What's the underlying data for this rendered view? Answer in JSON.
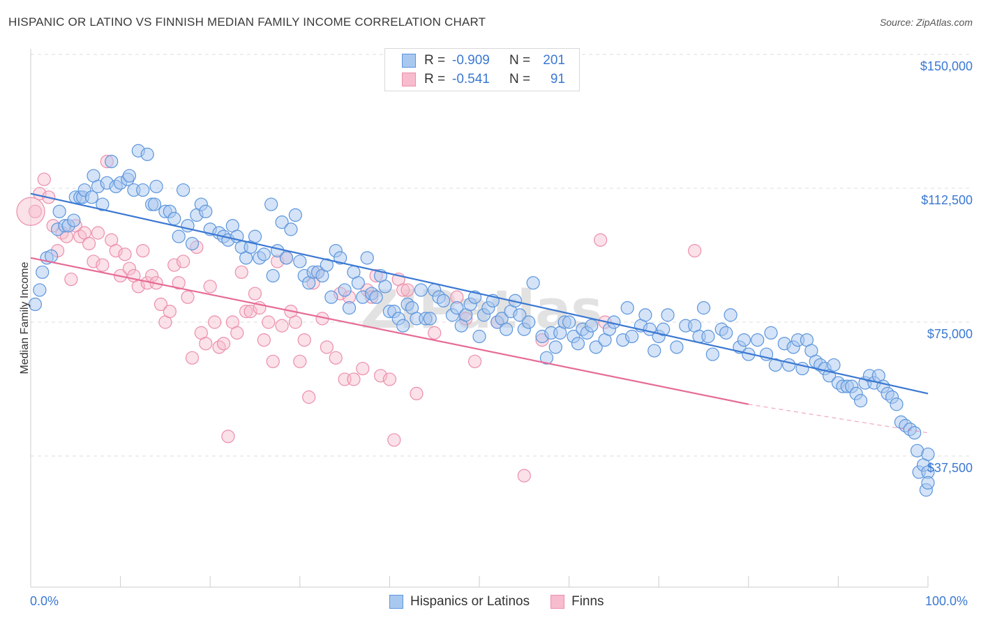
{
  "title": "HISPANIC OR LATINO VS FINNISH MEDIAN FAMILY INCOME CORRELATION CHART",
  "source": "Source: ZipAtlas.com",
  "watermark": "ZIPatlas",
  "colors": {
    "blue_fill": "#a9c8f0",
    "blue_stroke": "#5b95dc",
    "blue_line": "#3a78d2",
    "pink_fill": "#f7bccd",
    "pink_stroke": "#ec8eab",
    "pink_line": "#e66b95",
    "grid": "#dddddd",
    "axis_text": "#3a78d2"
  },
  "legend_stats": [
    {
      "series": "Hispanics or Latinos",
      "r_label": "R =",
      "r_value": "-0.909",
      "n_label": "N =",
      "n_value": "201"
    },
    {
      "series": "Finns",
      "r_label": "R =",
      "r_value": "-0.541",
      "n_label": "N =",
      "n_value": "91"
    }
  ],
  "chart_data": {
    "type": "scatter",
    "title": "HISPANIC OR LATINO VS FINNISH MEDIAN FAMILY INCOME CORRELATION CHART",
    "xlabel": "",
    "ylabel": "Median Family Income",
    "xlim": [
      0,
      100
    ],
    "ylim": [
      0,
      157000
    ],
    "x_tick_labels": [
      "0.0%",
      "100.0%"
    ],
    "y_ticks": [
      37500,
      75000,
      112500,
      150000
    ],
    "y_tick_labels": [
      "$37,500",
      "$75,000",
      "$112,500",
      "$150,000"
    ],
    "legend": [
      "Hispanics or Latinos",
      "Finns"
    ],
    "series": [
      {
        "name": "Hispanics or Latinos",
        "trend": {
          "x": [
            0,
            100
          ],
          "y": [
            111000,
            55000
          ]
        },
        "points": [
          [
            0.5,
            80000
          ],
          [
            1.0,
            84000
          ],
          [
            1.3,
            89000
          ],
          [
            1.8,
            93000
          ],
          [
            2.3,
            93500
          ],
          [
            3.0,
            101000
          ],
          [
            3.2,
            106000
          ],
          [
            3.8,
            102000
          ],
          [
            4.2,
            102000
          ],
          [
            4.8,
            103500
          ],
          [
            5.0,
            110000
          ],
          [
            5.5,
            110000
          ],
          [
            5.8,
            110000
          ],
          [
            6.0,
            112000
          ],
          [
            6.8,
            110000
          ],
          [
            7.0,
            116000
          ],
          [
            7.5,
            113000
          ],
          [
            8.0,
            108000
          ],
          [
            8.5,
            114000
          ],
          [
            9.0,
            120000
          ],
          [
            9.5,
            113000
          ],
          [
            10.0,
            114000
          ],
          [
            10.8,
            115000
          ],
          [
            11.0,
            116000
          ],
          [
            11.5,
            112000
          ],
          [
            12.0,
            123000
          ],
          [
            12.5,
            112000
          ],
          [
            13.0,
            122000
          ],
          [
            13.5,
            108000
          ],
          [
            13.8,
            108000
          ],
          [
            14.0,
            113000
          ],
          [
            15.0,
            106000
          ],
          [
            15.5,
            106000
          ],
          [
            16.0,
            104000
          ],
          [
            16.5,
            99000
          ],
          [
            17.0,
            112000
          ],
          [
            17.5,
            102000
          ],
          [
            18.0,
            97000
          ],
          [
            18.5,
            105000
          ],
          [
            19.0,
            108000
          ],
          [
            19.5,
            106000
          ],
          [
            20.0,
            101000
          ],
          [
            21.0,
            100000
          ],
          [
            21.5,
            99000
          ],
          [
            22.0,
            98000
          ],
          [
            22.5,
            102000
          ],
          [
            23.0,
            99000
          ],
          [
            23.5,
            96000
          ],
          [
            24.0,
            93000
          ],
          [
            24.5,
            96000
          ],
          [
            25.0,
            99000
          ],
          [
            25.5,
            93000
          ],
          [
            26.0,
            94000
          ],
          [
            26.8,
            108000
          ],
          [
            27.0,
            88000
          ],
          [
            27.5,
            95000
          ],
          [
            28.0,
            103000
          ],
          [
            28.5,
            93000
          ],
          [
            29.0,
            101000
          ],
          [
            29.5,
            105000
          ],
          [
            30.0,
            92000
          ],
          [
            30.5,
            88000
          ],
          [
            31.0,
            86000
          ],
          [
            31.5,
            89000
          ],
          [
            32.0,
            89000
          ],
          [
            32.5,
            88000
          ],
          [
            33.0,
            91000
          ],
          [
            33.5,
            82000
          ],
          [
            34.0,
            95000
          ],
          [
            34.5,
            93000
          ],
          [
            35.0,
            84000
          ],
          [
            35.5,
            79000
          ],
          [
            36.0,
            89000
          ],
          [
            36.5,
            86000
          ],
          [
            37.0,
            82000
          ],
          [
            37.5,
            93000
          ],
          [
            38.0,
            83000
          ],
          [
            38.5,
            82000
          ],
          [
            39.0,
            88000
          ],
          [
            39.5,
            85000
          ],
          [
            40.0,
            78000
          ],
          [
            40.5,
            78000
          ],
          [
            41.0,
            76000
          ],
          [
            41.5,
            74000
          ],
          [
            42.0,
            80000
          ],
          [
            42.5,
            79000
          ],
          [
            43.0,
            76000
          ],
          [
            43.5,
            84000
          ],
          [
            44.0,
            76000
          ],
          [
            44.5,
            76000
          ],
          [
            45.0,
            84000
          ],
          [
            45.5,
            82000
          ],
          [
            46.0,
            81000
          ],
          [
            47.0,
            77000
          ],
          [
            47.5,
            79000
          ],
          [
            48.0,
            74000
          ],
          [
            48.5,
            77000
          ],
          [
            49.0,
            80000
          ],
          [
            49.5,
            82000
          ],
          [
            50.0,
            71000
          ],
          [
            50.5,
            77000
          ],
          [
            51.0,
            79000
          ],
          [
            51.5,
            81000
          ],
          [
            52.0,
            75000
          ],
          [
            52.5,
            76000
          ],
          [
            53.0,
            73000
          ],
          [
            53.5,
            78000
          ],
          [
            54.0,
            81000
          ],
          [
            54.5,
            77000
          ],
          [
            55.0,
            73000
          ],
          [
            55.5,
            75000
          ],
          [
            56.0,
            86000
          ],
          [
            57.0,
            71000
          ],
          [
            57.5,
            65000
          ],
          [
            58.0,
            72000
          ],
          [
            58.5,
            68000
          ],
          [
            59.0,
            72000
          ],
          [
            59.5,
            75000
          ],
          [
            60.0,
            75000
          ],
          [
            60.5,
            71000
          ],
          [
            61.0,
            69000
          ],
          [
            61.5,
            73000
          ],
          [
            62.0,
            72000
          ],
          [
            62.5,
            74000
          ],
          [
            63.0,
            68000
          ],
          [
            64.0,
            70000
          ],
          [
            64.5,
            73000
          ],
          [
            65.0,
            75000
          ],
          [
            66.0,
            70000
          ],
          [
            66.5,
            79000
          ],
          [
            67.0,
            71000
          ],
          [
            68.0,
            74000
          ],
          [
            68.5,
            77000
          ],
          [
            69.0,
            73000
          ],
          [
            69.5,
            67000
          ],
          [
            70.0,
            71000
          ],
          [
            70.5,
            73000
          ],
          [
            71.0,
            77000
          ],
          [
            72.0,
            68000
          ],
          [
            73.0,
            74000
          ],
          [
            74.0,
            74000
          ],
          [
            74.5,
            71000
          ],
          [
            75.0,
            79000
          ],
          [
            75.5,
            71000
          ],
          [
            76.0,
            66000
          ],
          [
            77.0,
            73000
          ],
          [
            77.5,
            72000
          ],
          [
            78.0,
            77000
          ],
          [
            79.0,
            68000
          ],
          [
            79.5,
            70000
          ],
          [
            80.0,
            66000
          ],
          [
            81.0,
            70000
          ],
          [
            82.0,
            66000
          ],
          [
            82.5,
            72000
          ],
          [
            83.0,
            63000
          ],
          [
            84.0,
            69000
          ],
          [
            84.5,
            63000
          ],
          [
            85.0,
            68000
          ],
          [
            85.5,
            70000
          ],
          [
            86.0,
            62000
          ],
          [
            86.5,
            70000
          ],
          [
            87.0,
            67000
          ],
          [
            87.5,
            64000
          ],
          [
            88.0,
            63000
          ],
          [
            88.5,
            62000
          ],
          [
            89.0,
            60000
          ],
          [
            89.5,
            63000
          ],
          [
            90.0,
            58000
          ],
          [
            90.5,
            57000
          ],
          [
            91.0,
            57000
          ],
          [
            91.5,
            57000
          ],
          [
            92.0,
            55000
          ],
          [
            92.5,
            53000
          ],
          [
            93.0,
            58000
          ],
          [
            93.5,
            60000
          ],
          [
            94.0,
            58000
          ],
          [
            94.5,
            60000
          ],
          [
            95.0,
            57000
          ],
          [
            95.5,
            55000
          ],
          [
            96.0,
            54000
          ],
          [
            96.5,
            52000
          ],
          [
            97.0,
            47000
          ],
          [
            97.5,
            46000
          ],
          [
            98.0,
            45000
          ],
          [
            98.5,
            44000
          ],
          [
            98.8,
            39000
          ],
          [
            99.0,
            33000
          ],
          [
            99.5,
            35000
          ],
          [
            99.8,
            28000
          ],
          [
            100.0,
            38000
          ],
          [
            100.0,
            33000
          ],
          [
            100.0,
            30000
          ]
        ]
      },
      {
        "name": "Finns",
        "trend": {
          "x": [
            0,
            80
          ],
          "y": [
            93000,
            52000
          ]
        },
        "trend_dashed": {
          "x": [
            80,
            100
          ],
          "y": [
            52000,
            44000
          ]
        },
        "points": [
          [
            0.5,
            106000
          ],
          [
            1.0,
            111000
          ],
          [
            1.5,
            115000
          ],
          [
            2.0,
            110000
          ],
          [
            2.5,
            102000
          ],
          [
            3.0,
            95000
          ],
          [
            3.5,
            100000
          ],
          [
            4.0,
            99000
          ],
          [
            4.5,
            87000
          ],
          [
            5.0,
            102000
          ],
          [
            5.5,
            99000
          ],
          [
            6.0,
            100000
          ],
          [
            6.5,
            97000
          ],
          [
            7.0,
            92000
          ],
          [
            7.5,
            100000
          ],
          [
            8.0,
            91000
          ],
          [
            8.5,
            120000
          ],
          [
            9.0,
            98000
          ],
          [
            9.5,
            95000
          ],
          [
            10.0,
            88000
          ],
          [
            10.5,
            94000
          ],
          [
            11.0,
            90000
          ],
          [
            11.5,
            88000
          ],
          [
            12.0,
            85000
          ],
          [
            12.5,
            95000
          ],
          [
            13.0,
            86000
          ],
          [
            13.5,
            88000
          ],
          [
            14.0,
            86000
          ],
          [
            14.5,
            80000
          ],
          [
            15.0,
            75000
          ],
          [
            15.5,
            78000
          ],
          [
            16.0,
            91000
          ],
          [
            16.5,
            86000
          ],
          [
            17.0,
            92000
          ],
          [
            17.5,
            82000
          ],
          [
            18.0,
            65000
          ],
          [
            18.5,
            96000
          ],
          [
            19.0,
            72000
          ],
          [
            19.5,
            69000
          ],
          [
            20.0,
            85000
          ],
          [
            20.5,
            75000
          ],
          [
            21.0,
            68000
          ],
          [
            21.5,
            69000
          ],
          [
            22.0,
            43000
          ],
          [
            22.5,
            75000
          ],
          [
            23.0,
            72000
          ],
          [
            23.5,
            89000
          ],
          [
            24.0,
            78000
          ],
          [
            24.5,
            78000
          ],
          [
            25.0,
            83000
          ],
          [
            25.5,
            79000
          ],
          [
            26.0,
            70000
          ],
          [
            26.5,
            75000
          ],
          [
            27.0,
            64000
          ],
          [
            27.5,
            92000
          ],
          [
            28.0,
            74000
          ],
          [
            28.5,
            93000
          ],
          [
            29.0,
            78000
          ],
          [
            29.5,
            75000
          ],
          [
            30.0,
            64000
          ],
          [
            30.5,
            70000
          ],
          [
            31.0,
            54000
          ],
          [
            31.5,
            86000
          ],
          [
            32.0,
            89000
          ],
          [
            32.5,
            76000
          ],
          [
            33.0,
            68000
          ],
          [
            34.0,
            65000
          ],
          [
            34.5,
            83000
          ],
          [
            35.0,
            59000
          ],
          [
            35.5,
            82000
          ],
          [
            36.0,
            59000
          ],
          [
            37.0,
            62000
          ],
          [
            37.5,
            84000
          ],
          [
            38.0,
            82000
          ],
          [
            38.5,
            88000
          ],
          [
            39.0,
            60000
          ],
          [
            40.0,
            59000
          ],
          [
            40.5,
            42000
          ],
          [
            41.0,
            87000
          ],
          [
            41.5,
            84000
          ],
          [
            42.0,
            84000
          ],
          [
            43.0,
            55000
          ],
          [
            45.0,
            72000
          ],
          [
            47.5,
            82000
          ],
          [
            48.5,
            76000
          ],
          [
            49.5,
            64000
          ],
          [
            52.0,
            75000
          ],
          [
            55.0,
            32000
          ],
          [
            57.0,
            70000
          ],
          [
            63.5,
            98000
          ],
          [
            64.0,
            75000
          ],
          [
            74.0,
            95000
          ]
        ]
      }
    ]
  },
  "bottom_legend": [
    {
      "label": "Hispanics or Latinos"
    },
    {
      "label": "Finns"
    }
  ]
}
